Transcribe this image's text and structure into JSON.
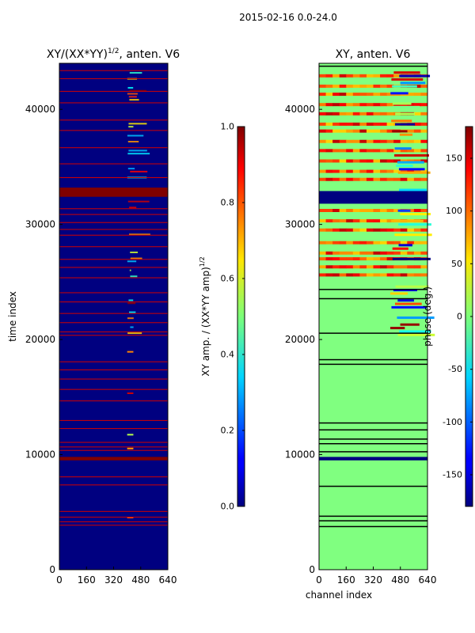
{
  "figure_title": "2015-02-16 0.0-24.0",
  "chart_data": [
    {
      "type": "heatmap",
      "title": "XY/(XX*YY)",
      "title_exponent": "1/2",
      "title_suffix": ", anten. V6",
      "xlabel": "",
      "ylabel": "time index",
      "xlim": [
        0,
        640
      ],
      "ylim": [
        0,
        44000
      ],
      "xticks": [
        0,
        160,
        320,
        480,
        640
      ],
      "yticks": [
        0,
        10000,
        20000,
        30000,
        40000
      ],
      "background_value": 0.0,
      "full_bands": [
        {
          "y0": 32400,
          "y1": 33200,
          "value": 1.0
        },
        {
          "y0": 9500,
          "y1": 9800,
          "value": 1.0
        }
      ],
      "thin_lines_y": [
        3900,
        4200,
        4600,
        5100,
        7400,
        8100,
        10400,
        10700,
        11100,
        12300,
        13000,
        14700,
        15700,
        16600,
        17400,
        18100,
        20400,
        20700,
        21500,
        22300,
        23300,
        24100,
        25400,
        26300,
        27000,
        28100,
        29100,
        29600,
        30200,
        30900,
        31400,
        34100,
        35300,
        36700,
        38200,
        39100,
        40600,
        41600,
        42700,
        43400
      ],
      "feature_region_x": [
        400,
        530
      ],
      "colorbar": {
        "label": "XY amp. / (XX*YY amp)",
        "label_exponent": "1/2",
        "range": [
          0.0,
          1.0
        ],
        "ticks": [
          "0.0",
          "0.2",
          "0.4",
          "0.6",
          "0.8",
          "1.0"
        ]
      }
    },
    {
      "type": "heatmap",
      "title": "XY, anten. V6",
      "xlabel": "channel index",
      "ylabel": "",
      "xlim": [
        0,
        640
      ],
      "ylim": [
        0,
        44000
      ],
      "xticks": [
        0,
        160,
        320,
        480,
        640
      ],
      "yticks": [
        0,
        10000,
        20000,
        30000,
        40000
      ],
      "background_value": 0,
      "full_bands": [
        {
          "y0": 31800,
          "y1": 32900,
          "value": -180
        },
        {
          "y0": 9500,
          "y1": 9800,
          "value": -180
        }
      ],
      "phase_rows_y": [
        25500,
        26200,
        26900,
        27400,
        28300,
        29400,
        30200,
        31100,
        33800,
        34500,
        35400,
        36300,
        37100,
        38000,
        38600,
        39500,
        40300,
        41200,
        41900,
        42800
      ],
      "dark_lines_y": [
        3800,
        4300,
        4700,
        7300,
        10300,
        11000,
        11400,
        12200,
        12800,
        17900,
        18300,
        20600,
        23600,
        24400,
        43800
      ],
      "colorbar": {
        "label": "phase (deg.)",
        "range": [
          -180,
          180
        ],
        "ticks": [
          "-150",
          "-100",
          "-50",
          "0",
          "50",
          "100",
          "150"
        ]
      }
    }
  ]
}
